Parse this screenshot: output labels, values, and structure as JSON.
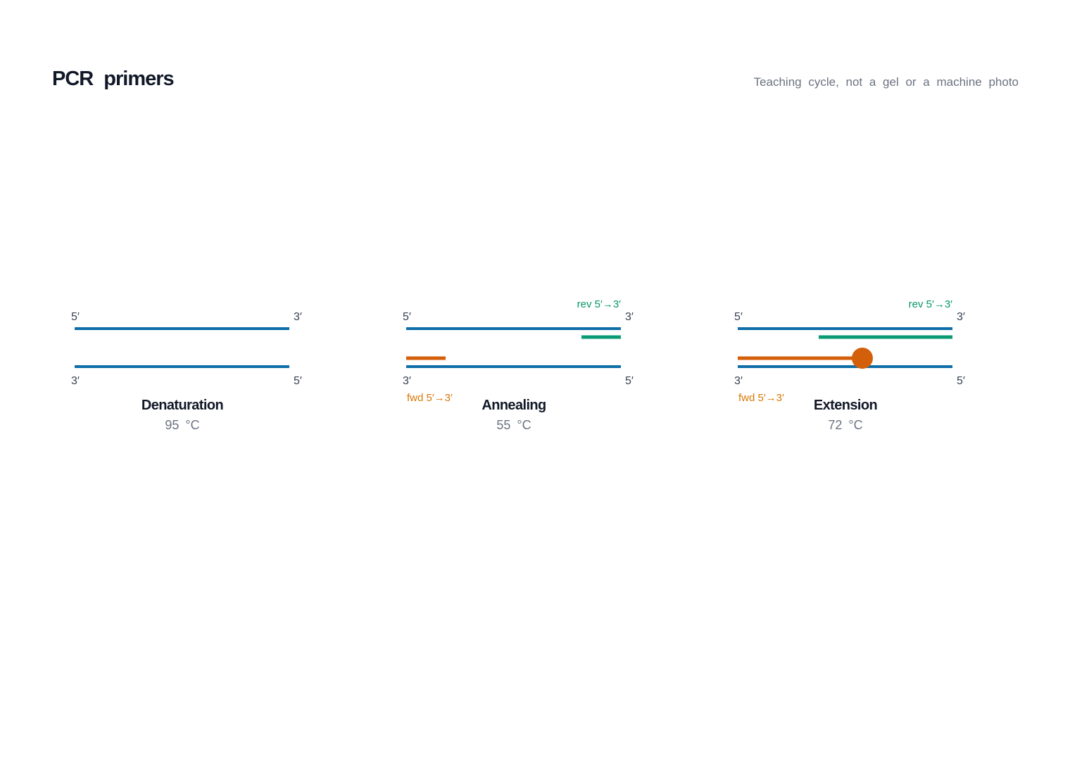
{
  "header": {
    "title": "PCR primers",
    "subtitle": "Teaching cycle, not a gel or a machine photo"
  },
  "colors": {
    "template_strand": "#0e6ea8",
    "reverse_primer": "#0a9b74",
    "forward_primer": "#d45f0a",
    "polymerase": "#d45f0a"
  },
  "strand_ends": {
    "top_left": "5′",
    "top_right": "3′",
    "bottom_left": "3′",
    "bottom_right": "5′"
  },
  "primer_labels": {
    "reverse": "rev 5′→3′",
    "forward": "fwd 5′→3′"
  },
  "stages": [
    {
      "name": "Denaturation",
      "temperature": "95 °C"
    },
    {
      "name": "Annealing",
      "temperature": "55 °C"
    },
    {
      "name": "Extension",
      "temperature": "72 °C"
    }
  ]
}
